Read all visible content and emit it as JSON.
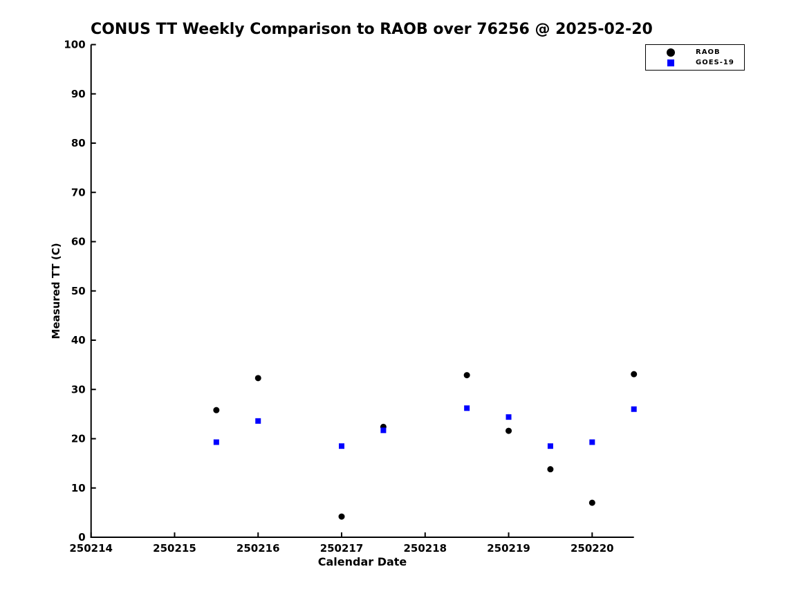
{
  "title": "CONUS TT Weekly Comparison to RAOB over 76256 @ 2025-02-20",
  "chart_data": {
    "type": "scatter",
    "title": "CONUS TT Weekly Comparison to RAOB over 76256 @ 2025-02-20",
    "xlabel": "Calendar Date",
    "ylabel": "Measured TT (C)",
    "xlim": [
      250214,
      250220.5
    ],
    "ylim": [
      0,
      100
    ],
    "x_ticks": [
      250214,
      250215,
      250216,
      250217,
      250218,
      250219,
      250220
    ],
    "y_ticks": [
      0,
      10,
      20,
      30,
      40,
      50,
      60,
      70,
      80,
      90,
      100
    ],
    "grid": false,
    "legend_position": "upper right, outside plot area",
    "axis_color": "#000000",
    "background_color": "#ffffff",
    "series": [
      {
        "name": "RAOB",
        "marker": "circle",
        "color": "#000000",
        "points": [
          [
            250215.5,
            25.8
          ],
          [
            250216.0,
            32.3
          ],
          [
            250217.0,
            4.2
          ],
          [
            250217.5,
            22.4
          ],
          [
            250218.5,
            32.9
          ],
          [
            250219.0,
            21.6
          ],
          [
            250219.5,
            13.8
          ],
          [
            250220.0,
            7.0
          ],
          [
            250220.5,
            33.1
          ]
        ]
      },
      {
        "name": "GOES-19",
        "marker": "square",
        "color": "#0000ff",
        "points": [
          [
            250215.5,
            19.3
          ],
          [
            250216.0,
            23.6
          ],
          [
            250217.0,
            18.5
          ],
          [
            250217.5,
            21.7
          ],
          [
            250218.5,
            26.2
          ],
          [
            250219.0,
            24.4
          ],
          [
            250219.5,
            18.5
          ],
          [
            250220.0,
            19.3
          ],
          [
            250220.5,
            26.0
          ]
        ]
      }
    ]
  }
}
